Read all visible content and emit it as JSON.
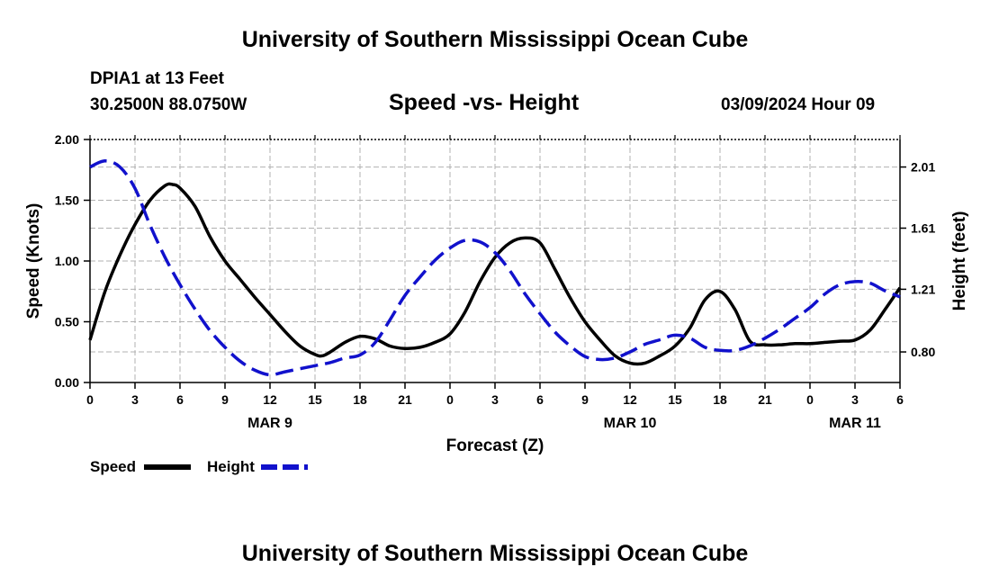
{
  "header": {
    "title": "University of Southern Mississippi Ocean Cube",
    "station": "DPIA1 at 13 Feet",
    "location": "30.2500N  88.0750W",
    "datetime": "03/09/2024 Hour 09"
  },
  "footer": {
    "title": "University of Southern Mississippi Ocean Cube"
  },
  "chart_data": {
    "type": "line",
    "title": "Speed -vs- Height",
    "xlabel": "Forecast (Z)",
    "ylabel_left": "Speed (Knots)",
    "ylabel_right": "Height (feet)",
    "xlim": [
      0,
      54
    ],
    "ylim_left": [
      0,
      2.0
    ],
    "ylim_right": [
      0.6,
      2.19
    ],
    "grid": true,
    "x_ticks": [
      0,
      3,
      6,
      9,
      12,
      15,
      18,
      21,
      24,
      27,
      30,
      33,
      36,
      39,
      42,
      45,
      48,
      51,
      54
    ],
    "x_tick_labels": [
      "0",
      "3",
      "6",
      "9",
      "12",
      "15",
      "18",
      "21",
      "0",
      "3",
      "6",
      "9",
      "12",
      "15",
      "18",
      "21",
      "0",
      "3",
      "6"
    ],
    "y_left_ticks": [
      0,
      0.5,
      1.0,
      1.5,
      2.0
    ],
    "y_left_tick_labels": [
      "0.00",
      "0.50",
      "1.00",
      "1.50",
      "2.00"
    ],
    "y_right_ticks": [
      0.8,
      1.21,
      1.61,
      2.01
    ],
    "y_right_tick_labels": [
      "0.80",
      "1.21",
      "1.61",
      "2.01"
    ],
    "date_labels": [
      {
        "text": "MAR 9",
        "x": 12
      },
      {
        "text": "MAR 10",
        "x": 36
      },
      {
        "text": "MAR 11",
        "x": 51
      }
    ],
    "series": [
      {
        "name": "Speed",
        "axis": "left",
        "color": "#000000",
        "dash": "solid",
        "x": [
          0,
          1,
          2,
          3,
          4,
          5,
          5.5,
          6,
          7,
          8,
          9,
          10,
          11,
          12,
          13,
          14,
          15,
          15.5,
          16,
          17,
          18,
          19,
          20,
          21,
          22,
          23,
          24,
          25,
          26,
          27,
          28,
          29,
          30,
          31,
          32,
          33,
          34,
          35,
          36,
          37,
          38,
          39,
          40,
          41,
          42,
          43,
          44,
          45,
          46,
          47,
          48,
          49,
          50,
          51,
          52,
          53,
          54
        ],
        "values": [
          0.35,
          0.75,
          1.05,
          1.3,
          1.5,
          1.62,
          1.63,
          1.6,
          1.45,
          1.2,
          1.0,
          0.85,
          0.7,
          0.56,
          0.42,
          0.3,
          0.23,
          0.22,
          0.25,
          0.33,
          0.38,
          0.36,
          0.3,
          0.28,
          0.29,
          0.33,
          0.4,
          0.58,
          0.83,
          1.03,
          1.15,
          1.19,
          1.15,
          0.93,
          0.7,
          0.5,
          0.35,
          0.22,
          0.16,
          0.16,
          0.22,
          0.3,
          0.45,
          0.68,
          0.75,
          0.6,
          0.34,
          0.31,
          0.31,
          0.32,
          0.32,
          0.33,
          0.34,
          0.35,
          0.43,
          0.6,
          0.78
        ]
      },
      {
        "name": "Height",
        "axis": "right",
        "color": "#1111cc",
        "dash": "dashed",
        "x": [
          0,
          1,
          2,
          3,
          4,
          5,
          6,
          7,
          8,
          9,
          10,
          11,
          12,
          13,
          14,
          15,
          16,
          17,
          18,
          19,
          20,
          21,
          22,
          23,
          24,
          25,
          26,
          27,
          28,
          29,
          30,
          31,
          32,
          33,
          34,
          35,
          36,
          37,
          38,
          39,
          40,
          41,
          42,
          43,
          44,
          45,
          46,
          47,
          48,
          49,
          50,
          51,
          52,
          53,
          54
        ],
        "values": [
          2.01,
          2.05,
          2.01,
          1.87,
          1.63,
          1.42,
          1.24,
          1.08,
          0.94,
          0.83,
          0.74,
          0.68,
          0.65,
          0.67,
          0.69,
          0.71,
          0.73,
          0.76,
          0.78,
          0.86,
          1.01,
          1.17,
          1.29,
          1.4,
          1.48,
          1.53,
          1.52,
          1.45,
          1.33,
          1.18,
          1.05,
          0.93,
          0.84,
          0.77,
          0.75,
          0.76,
          0.8,
          0.85,
          0.88,
          0.91,
          0.89,
          0.83,
          0.81,
          0.81,
          0.84,
          0.89,
          0.95,
          1.02,
          1.09,
          1.18,
          1.24,
          1.26,
          1.25,
          1.2,
          1.16
        ]
      }
    ],
    "legend": [
      {
        "label": "Speed",
        "color": "#000000",
        "dash": "solid"
      },
      {
        "label": "Height",
        "color": "#1111cc",
        "dash": "dashed"
      }
    ],
    "legend_position": "bottom-left"
  }
}
